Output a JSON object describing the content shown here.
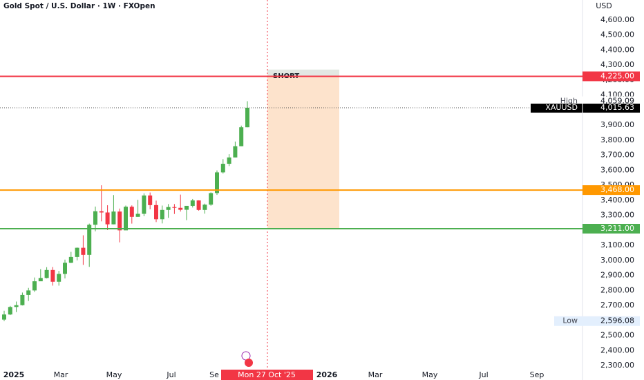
{
  "chart_data": {
    "type": "candlestick",
    "title": "Gold Spot / U.S. Dollar · 1W · FXOpen",
    "currency": "USD",
    "up_color": "#4caf50",
    "down_color": "#f23645",
    "open": [
      2606,
      2640,
      2690,
      2702,
      2770,
      2800,
      2861,
      2883,
      2936,
      2858,
      2910,
      2984,
      3023,
      3084,
      3037,
      3237,
      3327,
      3319,
      3240,
      3325,
      3200,
      3357,
      3290,
      3310,
      3432,
      3368,
      3274,
      3336,
      3355,
      3350,
      3337,
      3363,
      3399,
      3336,
      3371,
      3448,
      3586,
      3643,
      3685,
      3760,
      3886
    ],
    "high": [
      2665,
      2697,
      2726,
      2786,
      2817,
      2886,
      2942,
      2955,
      2956,
      2930,
      3005,
      3057,
      3086,
      3167,
      3245,
      3358,
      3500,
      3367,
      3435,
      3345,
      3365,
      3366,
      3403,
      3446,
      3452,
      3398,
      3365,
      3375,
      3375,
      3438,
      3363,
      3409,
      3400,
      3378,
      3453,
      3599,
      3674,
      3707,
      3791,
      3897,
      4059.09
    ],
    "low": [
      2596.08,
      2636,
      2656,
      2700,
      2730,
      2790,
      2864,
      2880,
      2832,
      2832,
      2880,
      2982,
      3000,
      2970,
      2957,
      3194,
      3260,
      3202,
      3240,
      3120,
      3204,
      3245,
      3290,
      3294,
      3340,
      3255,
      3246,
      3283,
      3309,
      3325,
      3268,
      3352,
      3331,
      3311,
      3364,
      3436,
      3578,
      3628,
      3685,
      3760,
      3886
    ],
    "close": [
      2640,
      2690,
      2702,
      2770,
      2800,
      2861,
      2883,
      2936,
      2858,
      2910,
      2984,
      3023,
      3084,
      3037,
      3237,
      3327,
      3319,
      3240,
      3325,
      3200,
      3357,
      3290,
      3310,
      3432,
      3368,
      3274,
      3336,
      3355,
      3350,
      3337,
      3363,
      3399,
      3336,
      3371,
      3448,
      3586,
      3643,
      3685,
      3760,
      3886,
      4015.63
    ],
    "ylim": [
      2204,
      4733
    ],
    "yticks": [
      {
        "value": 4600,
        "label": "4,600.00"
      },
      {
        "value": 4500,
        "label": "4,500.00"
      },
      {
        "value": 4400,
        "label": "4,400.00"
      },
      {
        "value": 4300,
        "label": "4,300.00"
      },
      {
        "value": 4200,
        "label": "4,200.00"
      },
      {
        "value": 4100,
        "label": "4,100.00"
      },
      {
        "value": 3900,
        "label": "3,900.00"
      },
      {
        "value": 3800,
        "label": "3,800.00"
      },
      {
        "value": 3700,
        "label": "3,700.00"
      },
      {
        "value": 3600,
        "label": "3,600.00"
      },
      {
        "value": 3500,
        "label": "3,500.00"
      },
      {
        "value": 3400,
        "label": "3,400.00"
      },
      {
        "value": 3300,
        "label": "3,300.00"
      },
      {
        "value": 3100,
        "label": "3,100.00"
      },
      {
        "value": 3000,
        "label": "3,000.00"
      },
      {
        "value": 2900,
        "label": "2,900.00"
      },
      {
        "value": 2800,
        "label": "2,800.00"
      },
      {
        "value": 2700,
        "label": "2,700.00"
      },
      {
        "value": 2500,
        "label": "2,500.00"
      },
      {
        "value": 2400,
        "label": "2,400.00"
      },
      {
        "value": 2300,
        "label": "2,300.00"
      }
    ],
    "xtick_labels": [
      "2025",
      "Mar",
      "May",
      "Jul",
      "Se",
      "2026",
      "Mar",
      "May",
      "Jul",
      "Sep"
    ],
    "levels": [
      {
        "value": 4225,
        "label": "4,225.00",
        "color": "#f23645"
      },
      {
        "value": 3468,
        "label": "3,468.00",
        "color": "#ff9800"
      },
      {
        "value": 3211,
        "label": "3,211.00",
        "color": "#4caf50"
      }
    ],
    "high_marker": {
      "name": "High",
      "value": 4059.09,
      "label": "4,059.09"
    },
    "low_marker": {
      "name": "Low",
      "value": 2596.08,
      "label": "2,596.08"
    },
    "last_price": {
      "name": "XAUUSD",
      "value": 4015.63,
      "label": "4,015.63"
    },
    "position": {
      "label": "SHORT",
      "stop": 4270,
      "entry": 4225,
      "target": 3211
    },
    "cursor_label": "Mon 27 Oct '25"
  }
}
